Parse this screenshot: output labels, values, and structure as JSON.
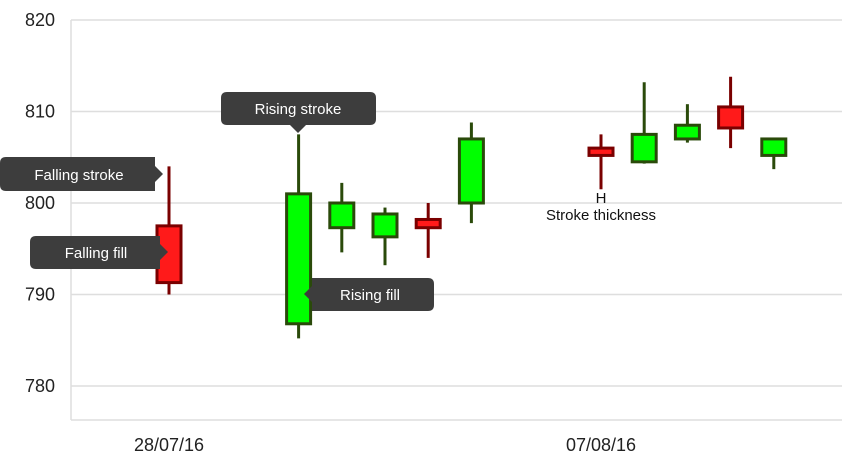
{
  "colors": {
    "background": "#ffffff",
    "grid": "#dedede",
    "axis_text": "#222222",
    "rising_fill": "#00ff00",
    "rising_stroke": "#2a4a0a",
    "falling_fill": "#ff1a1a",
    "falling_stroke": "#7a0000",
    "tooltip_bg": "#3d3d3d",
    "tooltip_text": "#ffffff"
  },
  "callouts": {
    "falling_stroke": "Falling stroke",
    "falling_fill": "Falling fill",
    "rising_stroke": "Rising stroke",
    "rising_fill": "Rising fill",
    "stroke_thickness": "Stroke thickness",
    "stroke_thickness_marker": "H"
  },
  "chart_data": {
    "type": "candlestick",
    "title": "",
    "xlabel": "",
    "ylabel": "",
    "ylim": [
      776,
      820
    ],
    "yticks": [
      780,
      790,
      800,
      810,
      820
    ],
    "xticks": [
      {
        "index": 0,
        "label": "28/07/16"
      },
      {
        "index": 10,
        "label": "07/08/16"
      }
    ],
    "grid": true,
    "candles": [
      {
        "index": 0,
        "open": 797.5,
        "high": 804.0,
        "low": 790.0,
        "close": 791.3
      },
      {
        "index": 3,
        "open": 786.8,
        "high": 807.5,
        "low": 785.2,
        "close": 801.0
      },
      {
        "index": 4,
        "open": 797.3,
        "high": 802.2,
        "low": 794.6,
        "close": 800.0
      },
      {
        "index": 5,
        "open": 796.3,
        "high": 799.5,
        "low": 793.2,
        "close": 798.8
      },
      {
        "index": 6,
        "open": 798.2,
        "high": 800.0,
        "low": 794.0,
        "close": 797.3
      },
      {
        "index": 7,
        "open": 800.0,
        "high": 808.8,
        "low": 797.8,
        "close": 807.0
      },
      {
        "index": 10,
        "open": 806.0,
        "high": 807.5,
        "low": 801.5,
        "close": 805.2
      },
      {
        "index": 11,
        "open": 804.5,
        "high": 813.2,
        "low": 804.3,
        "close": 807.5
      },
      {
        "index": 12,
        "open": 807.0,
        "high": 810.8,
        "low": 806.6,
        "close": 808.5
      },
      {
        "index": 13,
        "open": 810.5,
        "high": 813.8,
        "low": 806.0,
        "close": 808.2
      },
      {
        "index": 14,
        "open": 805.2,
        "high": 807.0,
        "low": 803.7,
        "close": 807.0
      }
    ]
  }
}
